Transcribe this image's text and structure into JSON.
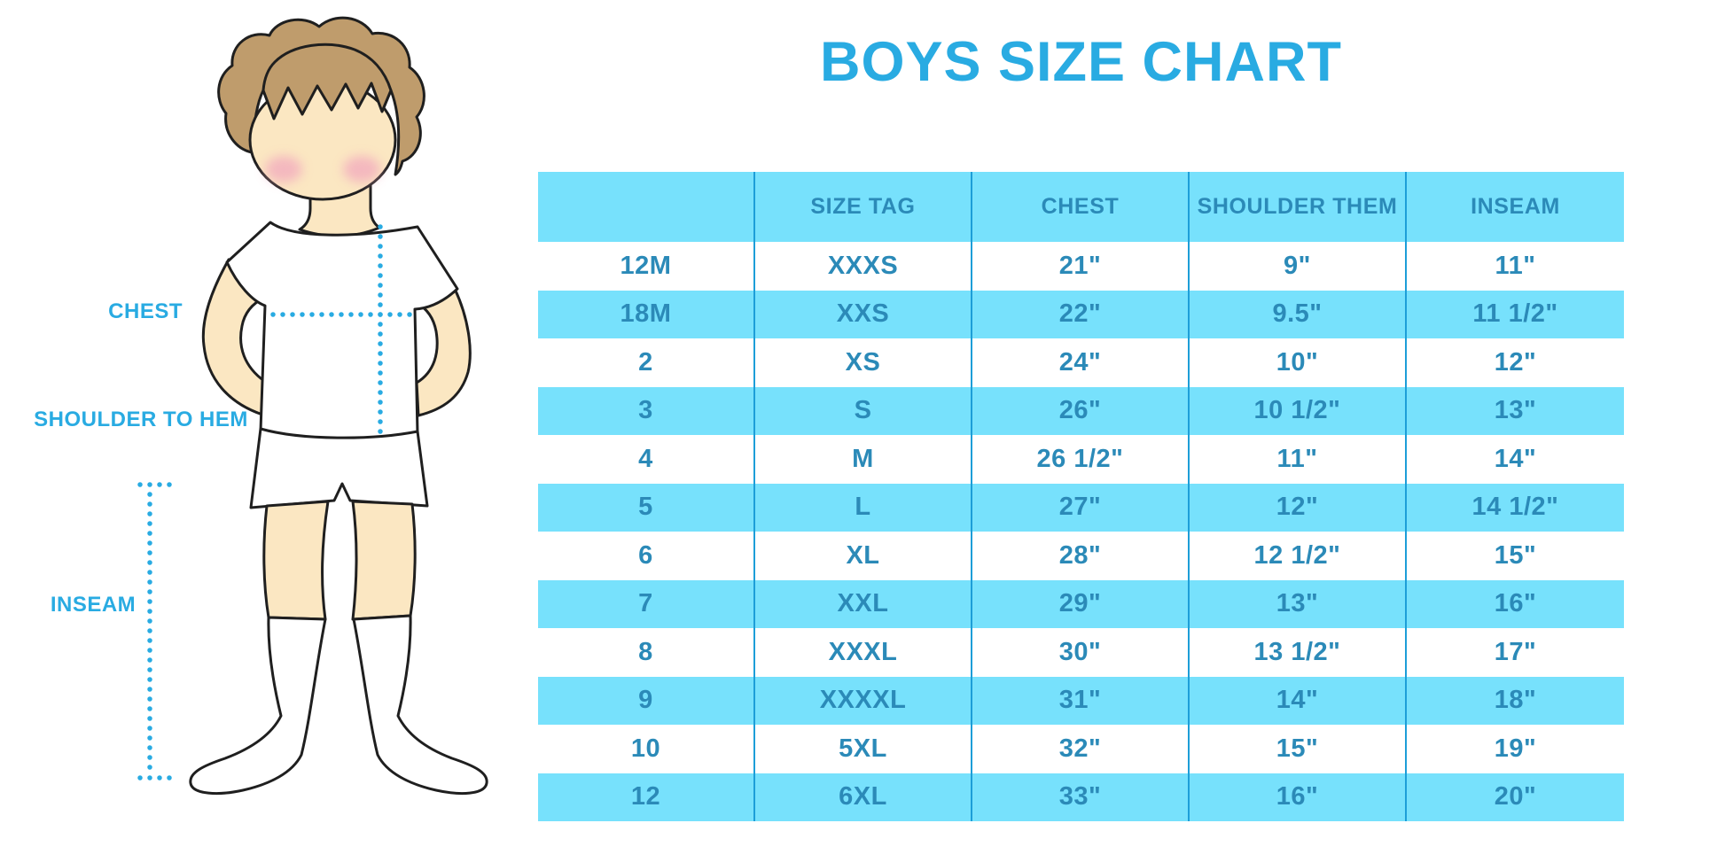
{
  "title": "BOYS SIZE CHART",
  "figure": {
    "chest_label": "CHEST",
    "shoulder_label": "SHOULDER TO HEM",
    "inseam_label": "INSEAM"
  },
  "colors": {
    "accent_blue": "#29abe2",
    "table_fill": "#77e1fc",
    "table_text": "#2b8ab8",
    "table_divider": "#1d9ed8",
    "skin": "#fbe7c2",
    "hair": "#bf9c6c",
    "cheek": "#f2a9bd",
    "outline": "#1f1f1f"
  },
  "chart_data": {
    "type": "table",
    "title": "BOYS SIZE CHART",
    "columns": [
      "",
      "SIZE TAG",
      "CHEST",
      "SHOULDER THEM",
      "INSEAM"
    ],
    "rows": [
      [
        "12M",
        "XXXS",
        "21\"",
        "9\"",
        "11\""
      ],
      [
        "18M",
        "XXS",
        "22\"",
        "9.5\"",
        "11 1/2\""
      ],
      [
        "2",
        "XS",
        "24\"",
        "10\"",
        "12\""
      ],
      [
        "3",
        "S",
        "26\"",
        "10 1/2\"",
        "13\""
      ],
      [
        "4",
        "M",
        "26 1/2\"",
        "11\"",
        "14\""
      ],
      [
        "5",
        "L",
        "27\"",
        "12\"",
        "14 1/2\""
      ],
      [
        "6",
        "XL",
        "28\"",
        "12 1/2\"",
        "15\""
      ],
      [
        "7",
        "XXL",
        "29\"",
        "13\"",
        "16\""
      ],
      [
        "8",
        "XXXL",
        "30\"",
        "13 1/2\"",
        "17\""
      ],
      [
        "9",
        "XXXXL",
        "31\"",
        "14\"",
        "18\""
      ],
      [
        "10",
        "5XL",
        "32\"",
        "15\"",
        "19\""
      ],
      [
        "12",
        "6XL",
        "33\"",
        "16\"",
        "20\""
      ]
    ]
  }
}
